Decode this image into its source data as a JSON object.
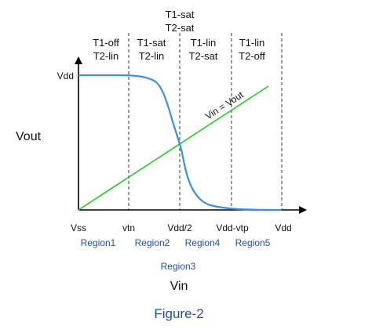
{
  "top_state": {
    "line1": "T1-sat",
    "line2": "T2-sat"
  },
  "regions_states": [
    {
      "t1": "T1-off",
      "t2": "T2-lin"
    },
    {
      "t1": "T1-sat",
      "t2": "T2-lin"
    },
    {
      "t1": "T1-lin",
      "t2": "T2-sat"
    },
    {
      "t1": "T1-lin",
      "t2": "T2-off"
    }
  ],
  "y_axis": {
    "label": "Vout",
    "tick_vdd": "Vdd"
  },
  "x_axis": {
    "label": "Vin",
    "ticks": [
      "Vss",
      "vtn",
      "Vdd/2",
      "Vdd-vtp",
      "Vdd"
    ]
  },
  "region_labels": [
    "Region1",
    "Region2",
    "Region4",
    "Region5"
  ],
  "region3_label": "Region3",
  "line_label": "Vin = Vout",
  "figure_caption": "Figure-2",
  "colors": {
    "curve": "#3d8fe0",
    "diagonal": "#22cc22",
    "axis": "#000000",
    "dashed": "#555555",
    "caption": "#1f4f9e"
  }
}
